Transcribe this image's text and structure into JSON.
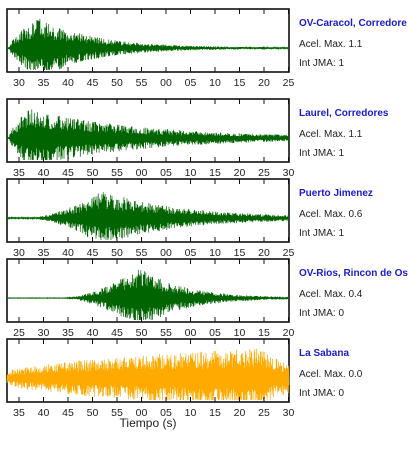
{
  "chart_data": [
    {
      "type": "line",
      "station": "OV-Caracol, Corredore",
      "acel_max": "Acel. Max. 1.1",
      "int_jma": "Int JMA: 1",
      "color": "#006400",
      "tick_labels": [
        "30",
        "35",
        "40",
        "45",
        "50",
        "55",
        "00",
        "05",
        "10",
        "15",
        "20",
        "25"
      ],
      "time_start_s": 27,
      "time_end_s": 86,
      "envelope": {
        "onset_s": 27.5,
        "rise_s": 3,
        "peak_s": 34,
        "peak_amp": 1.0,
        "decay_s": 11,
        "noise": 0.02
      }
    },
    {
      "type": "line",
      "station": "Laurel, Corredores",
      "acel_max": "Acel. Max. 1.1",
      "int_jma": "Int JMA: 1",
      "color": "#006400",
      "tick_labels": [
        "35",
        "40",
        "45",
        "50",
        "55",
        "00",
        "05",
        "10",
        "15",
        "20",
        "25",
        "30"
      ],
      "time_start_s": 31,
      "time_end_s": 91,
      "envelope": {
        "onset_s": 31.5,
        "rise_s": 2,
        "peak_s": 36,
        "peak_amp": 1.0,
        "decay_s": 22,
        "noise": 0.03
      }
    },
    {
      "type": "line",
      "station": "Puerto Jimenez",
      "acel_max": "Acel. Max. 0.6",
      "int_jma": "Int JMA: 1",
      "color": "#006400",
      "tick_labels": [
        "30",
        "35",
        "40",
        "45",
        "50",
        "55",
        "00",
        "05",
        "10",
        "15",
        "20",
        "25"
      ],
      "time_start_s": 27,
      "time_end_s": 86,
      "envelope": {
        "onset_s": 32,
        "rise_s": 10,
        "peak_s": 47,
        "peak_amp": 0.9,
        "decay_s": 16,
        "noise": 0.02
      }
    },
    {
      "type": "line",
      "station": "OV-Rios, Rincon de Os",
      "acel_max": "Acel. Max. 0.4",
      "int_jma": "Int JMA: 0",
      "color": "#006400",
      "tick_labels": [
        "25",
        "30",
        "35",
        "40",
        "45",
        "50",
        "55",
        "00",
        "05",
        "10",
        "15",
        "20"
      ],
      "time_start_s": 22,
      "time_end_s": 81,
      "envelope": {
        "onset_s": 34,
        "rise_s": 10,
        "peak_s": 50,
        "peak_amp": 1.0,
        "decay_s": 9,
        "noise": 0.01
      }
    },
    {
      "type": "line",
      "station": "La Sabana",
      "acel_max": "Acel. Max. 0.0",
      "int_jma": "Int JMA: 0",
      "color": "#ffaa00",
      "tick_labels": [
        "35",
        "40",
        "45",
        "50",
        "55",
        "00",
        "05",
        "10",
        "15",
        "20",
        "25",
        "30"
      ],
      "time_start_s": 32,
      "time_end_s": 92,
      "envelope": {
        "onset_s": 32,
        "rise_s": 1,
        "peak_s": 86,
        "peak_amp": 1.0,
        "decay_s": 6,
        "noise": 0.2
      }
    }
  ],
  "xlabel": "Tiempo (s)"
}
